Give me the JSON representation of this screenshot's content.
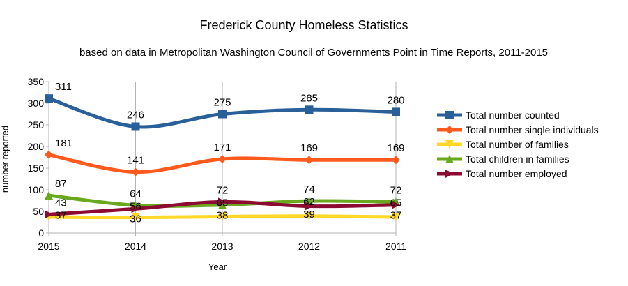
{
  "chart_data": {
    "type": "line",
    "title": "Frederick County Homeless Statistics",
    "subtitle": "based on data in Metropolitan Washington Council of Governments Point in Time Reports,  2011-2015",
    "xlabel": "Year",
    "ylabel": "number  reported",
    "categories": [
      "2015",
      "2014",
      "2013",
      "2012",
      "2011"
    ],
    "ylim": [
      0,
      350
    ],
    "yticks": [
      0,
      50,
      100,
      150,
      200,
      250,
      300,
      350
    ],
    "grid": "vertical",
    "legend": "right",
    "smooth": true,
    "data_labels": true,
    "series": [
      {
        "name": "Total number counted",
        "values": [
          311,
          246,
          275,
          285,
          280
        ],
        "color": "#2a6099",
        "marker": "square"
      },
      {
        "name": "Total number single individuals",
        "values": [
          181,
          141,
          171,
          169,
          169
        ],
        "color": "#ff5a1e",
        "marker": "diamond"
      },
      {
        "name": "Total number of families",
        "values": [
          37,
          36,
          38,
          39,
          37
        ],
        "color": "#ffd828",
        "marker": "triangle-down"
      },
      {
        "name": "Total children in families",
        "values": [
          87,
          64,
          65,
          74,
          72
        ],
        "color": "#6aa820",
        "marker": "triangle-up"
      },
      {
        "name": "Total number employed",
        "values": [
          43,
          56,
          72,
          62,
          65
        ],
        "color": "#8c0b33",
        "marker": "triangle-right"
      }
    ]
  }
}
